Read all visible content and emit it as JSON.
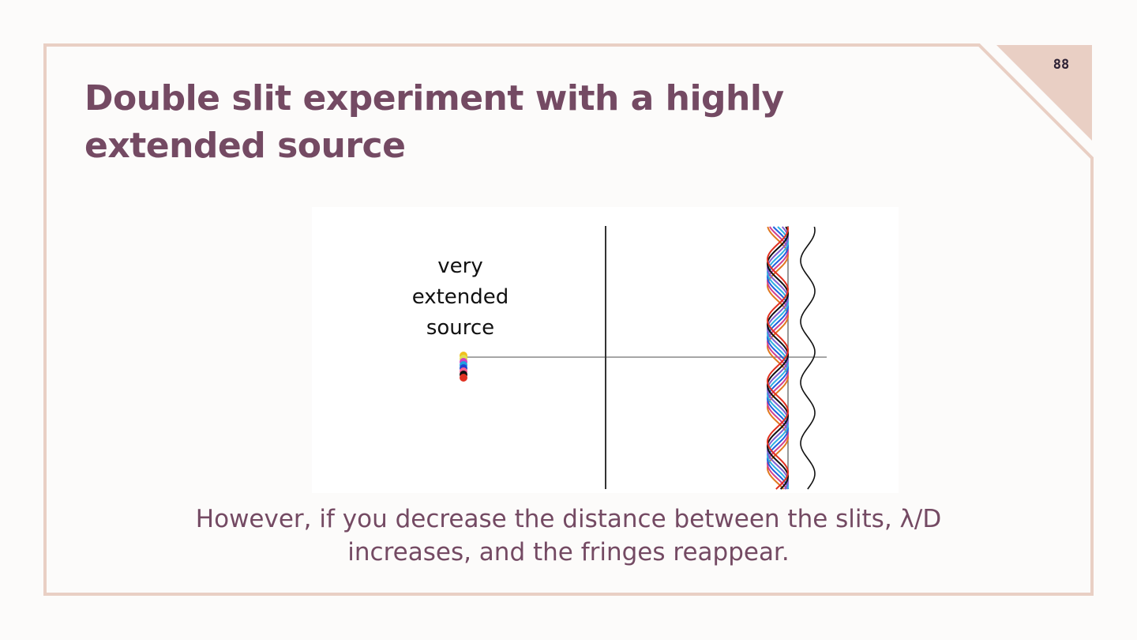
{
  "slide": {
    "page_number": "88",
    "title_lines": [
      "Double slit experiment with a highly",
      "extended source"
    ],
    "caption_lines": [
      "However, if you decrease the distance between the slits, λ/D",
      "increases, and the fringes reappear."
    ]
  },
  "diagram": {
    "source_label_lines": [
      "very",
      "extended",
      "source"
    ],
    "source_colors": [
      "#f0c020",
      "#e0e050",
      "#d040c0",
      "#20a0e0",
      "#2040d0",
      "#ff6090",
      "#111111",
      "#e03020"
    ],
    "fringe_colors": [
      "#e07820",
      "#d04090",
      "#2060e0",
      "#30b0e0",
      "#8060d0",
      "#111111",
      "#e03020"
    ],
    "summed_pattern_color": "#111111"
  },
  "colors": {
    "accent": "#744a63",
    "frame_border": "#e9cfc4",
    "corner_fill": "#e9cfc4",
    "background": "#fcfbfa"
  }
}
